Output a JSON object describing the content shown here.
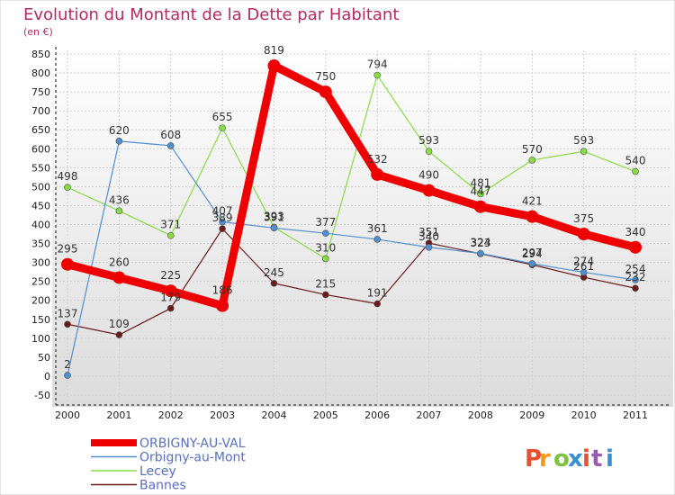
{
  "chart_data": {
    "type": "line",
    "title": "Evolution du Montant de la Dette par Habitant",
    "subtitle": "(en €)",
    "categories": [
      "2000",
      "2001",
      "2002",
      "2003",
      "2004",
      "2005",
      "2006",
      "2007",
      "2008",
      "2009",
      "2010",
      "2011"
    ],
    "ylim": [
      -50,
      850
    ],
    "yticks": [
      -50,
      0,
      50,
      100,
      150,
      200,
      250,
      300,
      350,
      400,
      450,
      500,
      550,
      600,
      650,
      700,
      750,
      800,
      850
    ],
    "grid": true,
    "legend_position": "bottom-left",
    "series": [
      {
        "name": "ORBIGNY-AU-VAL",
        "color": "#ee0000",
        "values": [
          295,
          260,
          225,
          186,
          819,
          750,
          532,
          490,
          447,
          421,
          375,
          340
        ]
      },
      {
        "name": "Orbigny-au-Mont",
        "color": "#4f8fd0",
        "values": [
          2,
          620,
          608,
          407,
          391,
          377,
          361,
          340,
          324,
          297,
          274,
          254
        ]
      },
      {
        "name": "Lecey",
        "color": "#88dd44",
        "values": [
          498,
          436,
          371,
          655,
          393,
          310,
          794,
          593,
          481,
          570,
          593,
          540
        ]
      },
      {
        "name": "Bannes",
        "color": "#6b1a1a",
        "values": [
          137,
          109,
          179,
          389,
          245,
          215,
          191,
          351,
          323,
          294,
          261,
          232
        ]
      }
    ]
  },
  "logo": {
    "text": "Proxiti",
    "letter_colors": [
      "#e94f2e",
      "#f39c12",
      "#7cc242",
      "#3b8ed0",
      "#e94f2e",
      "#9b59b6",
      "#3b8ed0"
    ]
  }
}
